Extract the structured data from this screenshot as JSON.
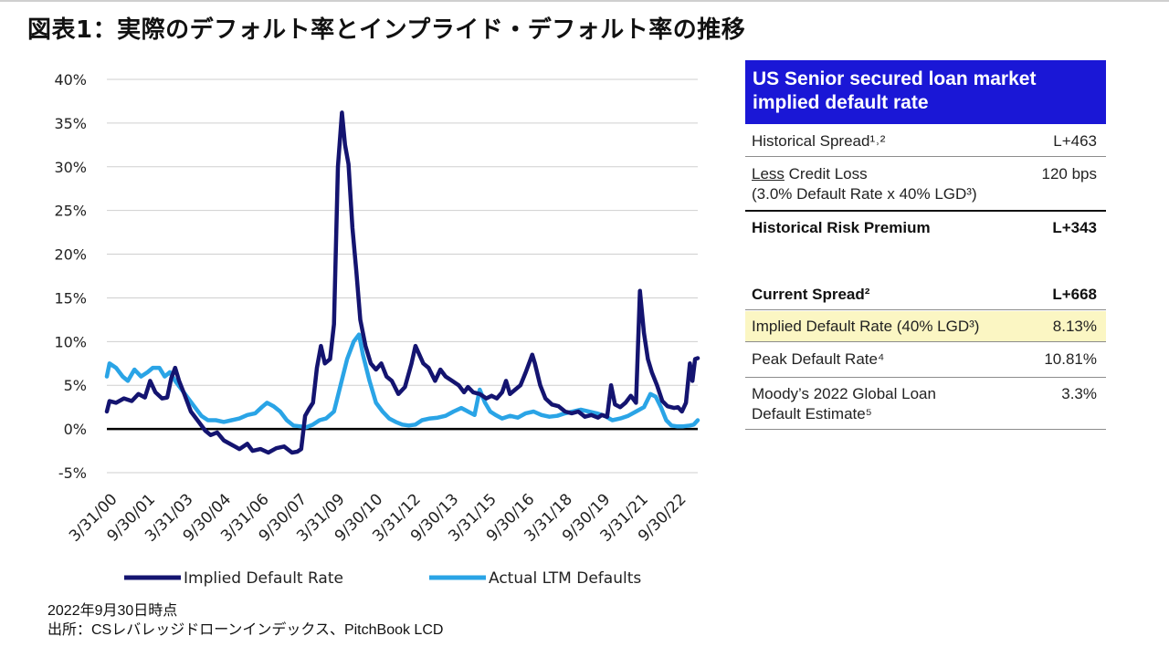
{
  "title": "図表1：実際のデフォルト率とインプライド・デフォルト率の推移",
  "chart_data": {
    "type": "line",
    "ylim": [
      -5,
      40
    ],
    "y_ticks": [
      "40%",
      "35%",
      "30%",
      "25%",
      "20%",
      "15%",
      "10%",
      "5%",
      "0%",
      "-5%"
    ],
    "x_tick_labels": [
      "3/31/00",
      "9/30/01",
      "3/31/03",
      "9/30/04",
      "3/31/06",
      "9/30/07",
      "3/31/09",
      "9/30/10",
      "3/31/12",
      "9/30/13",
      "3/31/15",
      "9/30/16",
      "3/31/18",
      "9/30/19",
      "3/31/21",
      "9/30/22"
    ],
    "x_range": [
      2000.25,
      2022.75
    ],
    "grid": true,
    "legend_position": "bottom",
    "colors": {
      "implied": "#141470",
      "actual": "#2aa4e6"
    },
    "series": [
      {
        "name": "Implied Default Rate",
        "points": [
          [
            2000.25,
            2.0
          ],
          [
            2000.35,
            3.2
          ],
          [
            2000.6,
            3.0
          ],
          [
            2000.9,
            3.5
          ],
          [
            2001.2,
            3.2
          ],
          [
            2001.45,
            4.0
          ],
          [
            2001.7,
            3.6
          ],
          [
            2001.9,
            5.5
          ],
          [
            2002.1,
            4.2
          ],
          [
            2002.35,
            3.5
          ],
          [
            2002.55,
            3.6
          ],
          [
            2002.7,
            5.8
          ],
          [
            2002.85,
            7.0
          ],
          [
            2003.0,
            5.5
          ],
          [
            2003.2,
            4.0
          ],
          [
            2003.45,
            2.0
          ],
          [
            2003.7,
            1.0
          ],
          [
            2004.0,
            -0.2
          ],
          [
            2004.2,
            -0.7
          ],
          [
            2004.45,
            -0.4
          ],
          [
            2004.7,
            -1.3
          ],
          [
            2005.0,
            -1.8
          ],
          [
            2005.3,
            -2.3
          ],
          [
            2005.6,
            -1.7
          ],
          [
            2005.8,
            -2.5
          ],
          [
            2006.1,
            -2.3
          ],
          [
            2006.4,
            -2.7
          ],
          [
            2006.7,
            -2.2
          ],
          [
            2007.0,
            -2.0
          ],
          [
            2007.3,
            -2.7
          ],
          [
            2007.5,
            -2.6
          ],
          [
            2007.65,
            -2.3
          ],
          [
            2007.8,
            1.5
          ],
          [
            2007.95,
            2.3
          ],
          [
            2008.1,
            3.0
          ],
          [
            2008.25,
            7.0
          ],
          [
            2008.4,
            9.5
          ],
          [
            2008.55,
            7.5
          ],
          [
            2008.75,
            8.0
          ],
          [
            2008.9,
            12.0
          ],
          [
            2009.05,
            30.0
          ],
          [
            2009.2,
            36.2
          ],
          [
            2009.32,
            32.5
          ],
          [
            2009.45,
            30.3
          ],
          [
            2009.6,
            23.0
          ],
          [
            2009.75,
            18.0
          ],
          [
            2009.9,
            12.5
          ],
          [
            2010.1,
            9.5
          ],
          [
            2010.3,
            7.5
          ],
          [
            2010.5,
            6.8
          ],
          [
            2010.7,
            7.5
          ],
          [
            2010.9,
            6.0
          ],
          [
            2011.1,
            5.5
          ],
          [
            2011.35,
            4.0
          ],
          [
            2011.6,
            4.8
          ],
          [
            2011.85,
            7.5
          ],
          [
            2012.0,
            9.5
          ],
          [
            2012.15,
            8.5
          ],
          [
            2012.3,
            7.5
          ],
          [
            2012.5,
            7.0
          ],
          [
            2012.75,
            5.5
          ],
          [
            2012.95,
            6.8
          ],
          [
            2013.15,
            6.0
          ],
          [
            2013.4,
            5.5
          ],
          [
            2013.65,
            5.0
          ],
          [
            2013.85,
            4.2
          ],
          [
            2014.0,
            4.8
          ],
          [
            2014.2,
            4.2
          ],
          [
            2014.45,
            4.0
          ],
          [
            2014.7,
            3.5
          ],
          [
            2014.9,
            3.8
          ],
          [
            2015.1,
            3.5
          ],
          [
            2015.3,
            4.2
          ],
          [
            2015.45,
            5.5
          ],
          [
            2015.6,
            4.0
          ],
          [
            2015.8,
            4.5
          ],
          [
            2016.0,
            5.0
          ],
          [
            2016.2,
            6.5
          ],
          [
            2016.45,
            8.5
          ],
          [
            2016.55,
            7.5
          ],
          [
            2016.75,
            5.0
          ],
          [
            2016.95,
            3.5
          ],
          [
            2017.2,
            2.8
          ],
          [
            2017.45,
            2.6
          ],
          [
            2017.7,
            2.0
          ],
          [
            2017.95,
            1.8
          ],
          [
            2018.2,
            2.0
          ],
          [
            2018.45,
            1.4
          ],
          [
            2018.7,
            1.6
          ],
          [
            2018.95,
            1.3
          ],
          [
            2019.1,
            1.6
          ],
          [
            2019.3,
            1.4
          ],
          [
            2019.45,
            5.0
          ],
          [
            2019.6,
            2.8
          ],
          [
            2019.8,
            2.5
          ],
          [
            2020.0,
            3.0
          ],
          [
            2020.2,
            3.8
          ],
          [
            2020.4,
            3.0
          ],
          [
            2020.55,
            15.8
          ],
          [
            2020.7,
            11.0
          ],
          [
            2020.85,
            8.0
          ],
          [
            2021.0,
            6.5
          ],
          [
            2021.2,
            5.0
          ],
          [
            2021.4,
            3.2
          ],
          [
            2021.6,
            2.6
          ],
          [
            2021.85,
            2.4
          ],
          [
            2022.0,
            2.5
          ],
          [
            2022.15,
            2.0
          ],
          [
            2022.3,
            3.0
          ],
          [
            2022.45,
            7.5
          ],
          [
            2022.55,
            5.5
          ],
          [
            2022.65,
            8.0
          ],
          [
            2022.75,
            8.1
          ]
        ]
      },
      {
        "name": "Actual LTM Defaults",
        "points": [
          [
            2000.25,
            6.0
          ],
          [
            2000.35,
            7.5
          ],
          [
            2000.6,
            7.0
          ],
          [
            2000.85,
            6.0
          ],
          [
            2001.05,
            5.5
          ],
          [
            2001.3,
            6.8
          ],
          [
            2001.55,
            6.0
          ],
          [
            2001.8,
            6.5
          ],
          [
            2002.0,
            7.0
          ],
          [
            2002.25,
            7.0
          ],
          [
            2002.45,
            6.0
          ],
          [
            2002.65,
            6.5
          ],
          [
            2002.85,
            5.5
          ],
          [
            2003.1,
            4.5
          ],
          [
            2003.35,
            3.5
          ],
          [
            2003.6,
            2.5
          ],
          [
            2003.85,
            1.5
          ],
          [
            2004.1,
            1.0
          ],
          [
            2004.4,
            1.0
          ],
          [
            2004.7,
            0.8
          ],
          [
            2005.0,
            1.0
          ],
          [
            2005.3,
            1.2
          ],
          [
            2005.6,
            1.6
          ],
          [
            2005.9,
            1.8
          ],
          [
            2006.15,
            2.5
          ],
          [
            2006.35,
            3.0
          ],
          [
            2006.6,
            2.6
          ],
          [
            2006.85,
            2.0
          ],
          [
            2007.1,
            1.0
          ],
          [
            2007.35,
            0.4
          ],
          [
            2007.6,
            0.3
          ],
          [
            2007.85,
            0.2
          ],
          [
            2008.1,
            0.5
          ],
          [
            2008.35,
            1.0
          ],
          [
            2008.6,
            1.2
          ],
          [
            2008.9,
            2.0
          ],
          [
            2009.15,
            5.0
          ],
          [
            2009.4,
            8.0
          ],
          [
            2009.65,
            10.0
          ],
          [
            2009.85,
            10.81
          ],
          [
            2010.0,
            8.5
          ],
          [
            2010.25,
            5.5
          ],
          [
            2010.5,
            3.0
          ],
          [
            2010.75,
            2.0
          ],
          [
            2011.0,
            1.2
          ],
          [
            2011.25,
            0.8
          ],
          [
            2011.5,
            0.5
          ],
          [
            2011.75,
            0.4
          ],
          [
            2012.0,
            0.5
          ],
          [
            2012.25,
            1.0
          ],
          [
            2012.55,
            1.2
          ],
          [
            2012.85,
            1.3
          ],
          [
            2013.15,
            1.5
          ],
          [
            2013.45,
            2.0
          ],
          [
            2013.75,
            2.4
          ],
          [
            2014.0,
            2.0
          ],
          [
            2014.25,
            1.6
          ],
          [
            2014.45,
            4.5
          ],
          [
            2014.65,
            3.0
          ],
          [
            2014.85,
            2.0
          ],
          [
            2015.05,
            1.6
          ],
          [
            2015.3,
            1.2
          ],
          [
            2015.6,
            1.5
          ],
          [
            2015.9,
            1.3
          ],
          [
            2016.2,
            1.8
          ],
          [
            2016.5,
            2.0
          ],
          [
            2016.8,
            1.6
          ],
          [
            2017.1,
            1.4
          ],
          [
            2017.4,
            1.5
          ],
          [
            2017.7,
            1.8
          ],
          [
            2018.0,
            2.0
          ],
          [
            2018.3,
            2.2
          ],
          [
            2018.6,
            2.0
          ],
          [
            2018.9,
            1.8
          ],
          [
            2019.2,
            1.5
          ],
          [
            2019.5,
            1.0
          ],
          [
            2019.8,
            1.2
          ],
          [
            2020.1,
            1.5
          ],
          [
            2020.4,
            2.0
          ],
          [
            2020.7,
            2.5
          ],
          [
            2020.95,
            4.0
          ],
          [
            2021.15,
            3.7
          ],
          [
            2021.35,
            2.5
          ],
          [
            2021.55,
            1.0
          ],
          [
            2021.75,
            0.4
          ],
          [
            2021.95,
            0.3
          ],
          [
            2022.2,
            0.3
          ],
          [
            2022.45,
            0.4
          ],
          [
            2022.6,
            0.5
          ],
          [
            2022.75,
            1.0
          ]
        ]
      }
    ]
  },
  "table": {
    "header": "US Senior secured loan market implied default rate",
    "rows": [
      {
        "label": "Historical Spread¹˒²",
        "value": "L+463"
      },
      {
        "label_underlined": "Less",
        "label_rest": " Credit Loss",
        "label_line2": "(3.0% Default Rate x 40% LGD³)",
        "value": "120 bps"
      },
      {
        "label": "Historical Risk Premium",
        "value": "L+343"
      },
      {
        "label": "Current Spread²",
        "value": "L+668"
      },
      {
        "label": "Implied Default Rate (40% LGD³)",
        "value": "8.13%"
      },
      {
        "label": "Peak Default Rate⁴",
        "value": "10.81%"
      },
      {
        "label": "Moody’s 2022 Global Loan",
        "label_line2": "Default Estimate⁵",
        "value": "3.3%"
      }
    ]
  },
  "notes": {
    "date": "2022年9月30日時点",
    "source": "出所：CSレバレッジドローンインデックス、PitchBook LCD"
  }
}
